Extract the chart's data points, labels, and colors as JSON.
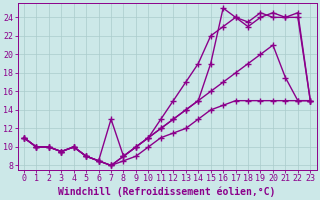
{
  "title": "",
  "xlabel": "Windchill (Refroidissement éolien,°C)",
  "ylabel": "",
  "bg_color": "#cce8e8",
  "line_color": "#8b008b",
  "grid_color": "#aacccc",
  "xlim": [
    -0.5,
    23.5
  ],
  "ylim": [
    7.5,
    25.5
  ],
  "xticks": [
    0,
    1,
    2,
    3,
    4,
    5,
    6,
    7,
    8,
    9,
    10,
    11,
    12,
    13,
    14,
    15,
    16,
    17,
    18,
    19,
    20,
    21,
    22,
    23
  ],
  "yticks": [
    8,
    10,
    12,
    14,
    16,
    18,
    20,
    22,
    24
  ],
  "line1_x": [
    0,
    1,
    2,
    3,
    4,
    5,
    6,
    7,
    8,
    9,
    10,
    11,
    12,
    13,
    14,
    15,
    16,
    17,
    18,
    19,
    20,
    21,
    22,
    23
  ],
  "line1_y": [
    11,
    10,
    10,
    9.5,
    10,
    9,
    8.5,
    8,
    8.5,
    9,
    10,
    11,
    11.5,
    12,
    13,
    14,
    14.5,
    15,
    15,
    15,
    15,
    15,
    15,
    15
  ],
  "line2_x": [
    0,
    1,
    2,
    3,
    4,
    5,
    6,
    7,
    8,
    9,
    10,
    11,
    12,
    13,
    14,
    15,
    16,
    17,
    18,
    19,
    20,
    21,
    22,
    23
  ],
  "line2_y": [
    11,
    10,
    10,
    9.5,
    10,
    9,
    8.5,
    8,
    9,
    10,
    11,
    12,
    13,
    14,
    15,
    16,
    17,
    18,
    19,
    20,
    21,
    17.5,
    15,
    15
  ],
  "line3_x": [
    0,
    1,
    2,
    3,
    4,
    5,
    6,
    7,
    8,
    9,
    10,
    11,
    12,
    13,
    14,
    15,
    16,
    17,
    18,
    19,
    20,
    21,
    22,
    23
  ],
  "line3_y": [
    11,
    10,
    10,
    9.5,
    10,
    9,
    8.5,
    13,
    9,
    10,
    11,
    13,
    15,
    17,
    19,
    22,
    23,
    24,
    23,
    24,
    24.5,
    24,
    24,
    15
  ],
  "line4_x": [
    0,
    1,
    2,
    3,
    4,
    5,
    6,
    7,
    8,
    9,
    10,
    11,
    12,
    13,
    14,
    15,
    16,
    17,
    18,
    19,
    20,
    21,
    22,
    23
  ],
  "line4_y": [
    11,
    10,
    10,
    9.5,
    10,
    9,
    8.5,
    8,
    9,
    10,
    11,
    12,
    13,
    14,
    15,
    19,
    25,
    24,
    23.5,
    24.5,
    24,
    24,
    24.5,
    15
  ],
  "marker": "+",
  "markersize": 4,
  "linewidth": 1.0,
  "xlabel_fontsize": 7,
  "tick_fontsize": 6
}
